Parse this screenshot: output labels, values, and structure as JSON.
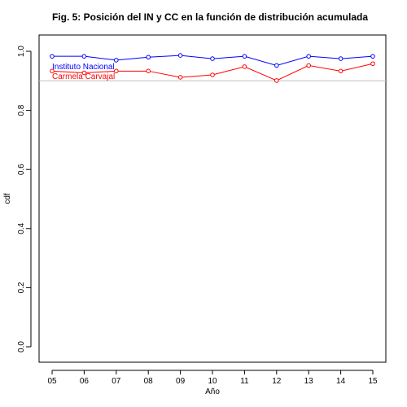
{
  "chart_data": {
    "type": "line",
    "title": "Fig. 5: Posición del IN y CC en la función de distribución acumulada",
    "xlabel": "Año",
    "ylabel": "cdf",
    "categories": [
      "05",
      "06",
      "07",
      "08",
      "09",
      "10",
      "11",
      "12",
      "13",
      "14",
      "15"
    ],
    "ylim": [
      0,
      1
    ],
    "yticks": [
      "0.0",
      "0.2",
      "0.4",
      "0.6",
      "0.8",
      "1.0"
    ],
    "grid": false,
    "reference_line": 0.9,
    "series": [
      {
        "name": "Instituto Nacional",
        "color": "#0000ff",
        "values": [
          0.983,
          0.983,
          0.97,
          0.98,
          0.986,
          0.975,
          0.983,
          0.952,
          0.983,
          0.975,
          0.983
        ]
      },
      {
        "name": "Carmela Carvajal",
        "color": "#ff0000",
        "values": [
          0.933,
          0.927,
          0.933,
          0.933,
          0.912,
          0.92,
          0.948,
          0.901,
          0.952,
          0.933,
          0.958
        ]
      }
    ]
  }
}
